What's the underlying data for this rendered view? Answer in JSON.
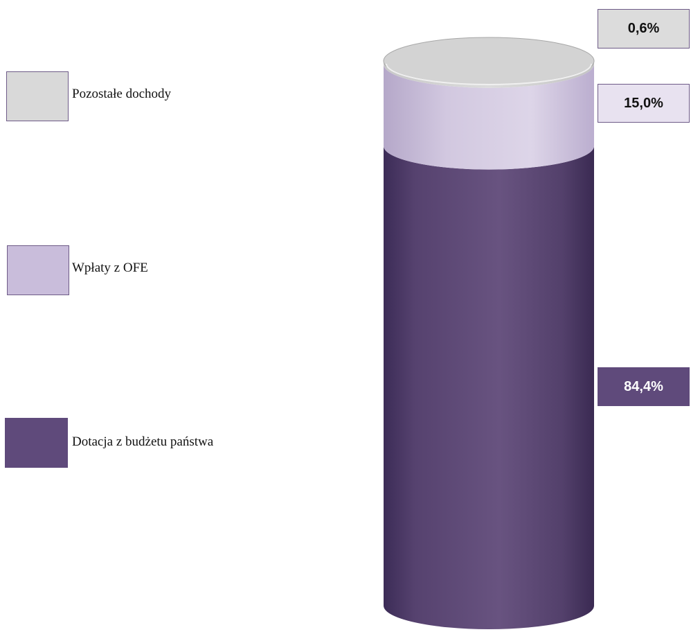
{
  "chart_data": {
    "type": "bar",
    "variant": "stacked-cylinder-100-percent",
    "categories": [
      ""
    ],
    "series": [
      {
        "name": "Dotacja z budżetu państwa",
        "values": [
          84.4
        ],
        "label": "84,4%",
        "color": "#5f4a7b",
        "label_box_color": "#5f4a7b",
        "label_text_color": "#ffffff"
      },
      {
        "name": "Wpłaty z OFE",
        "values": [
          15.0
        ],
        "label": "15,0%",
        "color": "#d3c8e0",
        "label_box_color": "#e8e2f0",
        "label_text_color": "#111111"
      },
      {
        "name": "Pozostałe dochody",
        "values": [
          0.6
        ],
        "label": "0,6%",
        "color": "#d9d9d9",
        "label_box_color": "#dcdcdc",
        "label_text_color": "#111111"
      }
    ],
    "legend": {
      "placement": "left",
      "items": [
        {
          "label": "Pozostałe dochody",
          "color": "#d9d9d9",
          "border": "#6d5a87"
        },
        {
          "label": "Wpłaty z OFE",
          "color": "#c9bddb",
          "border": "#6d5a87"
        },
        {
          "label": "Dotacja z budżetu państwa",
          "color": "#5f4a7b",
          "border": "#5f4a7b"
        }
      ]
    },
    "ylim": [
      0,
      100
    ],
    "grid": false
  }
}
